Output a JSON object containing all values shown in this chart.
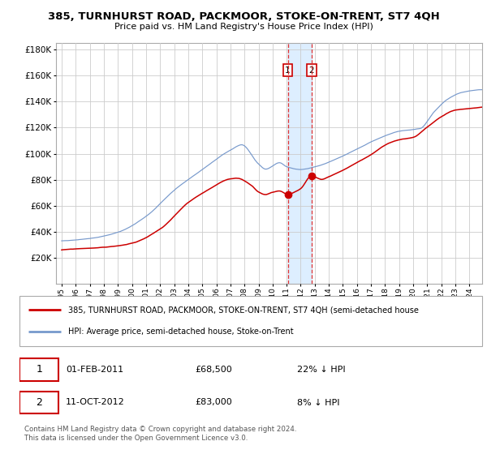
{
  "title": "385, TURNHURST ROAD, PACKMOOR, STOKE-ON-TRENT, ST7 4QH",
  "subtitle": "Price paid vs. HM Land Registry's House Price Index (HPI)",
  "legend_red": "385, TURNHURST ROAD, PACKMOOR, STOKE-ON-TRENT, ST7 4QH (semi-detached house",
  "legend_blue": "HPI: Average price, semi-detached house, Stoke-on-Trent",
  "annotation1_date": "01-FEB-2011",
  "annotation1_price": "£68,500",
  "annotation1_hpi": "22% ↓ HPI",
  "annotation2_date": "11-OCT-2012",
  "annotation2_price": "£83,000",
  "annotation2_hpi": "8% ↓ HPI",
  "footer": "Contains HM Land Registry data © Crown copyright and database right 2024.\nThis data is licensed under the Open Government Licence v3.0.",
  "purchase1_year": 2011.08,
  "purchase1_value": 68500,
  "purchase2_year": 2012.78,
  "purchase2_value": 83000,
  "vline1_year": 2011.08,
  "vline2_year": 2012.78,
  "shade_color": "#ddeeff",
  "vline_color": "#dd3333",
  "red_line_color": "#cc0000",
  "blue_line_color": "#7799cc",
  "background_color": "#ffffff",
  "grid_color": "#cccccc",
  "ylim": [
    0,
    185000
  ],
  "yticks": [
    20000,
    40000,
    60000,
    80000,
    100000,
    120000,
    140000,
    160000,
    180000
  ],
  "xlim_min": 1994.6,
  "xlim_max": 2024.9,
  "x_tick_start": 1995,
  "x_tick_end": 2025
}
